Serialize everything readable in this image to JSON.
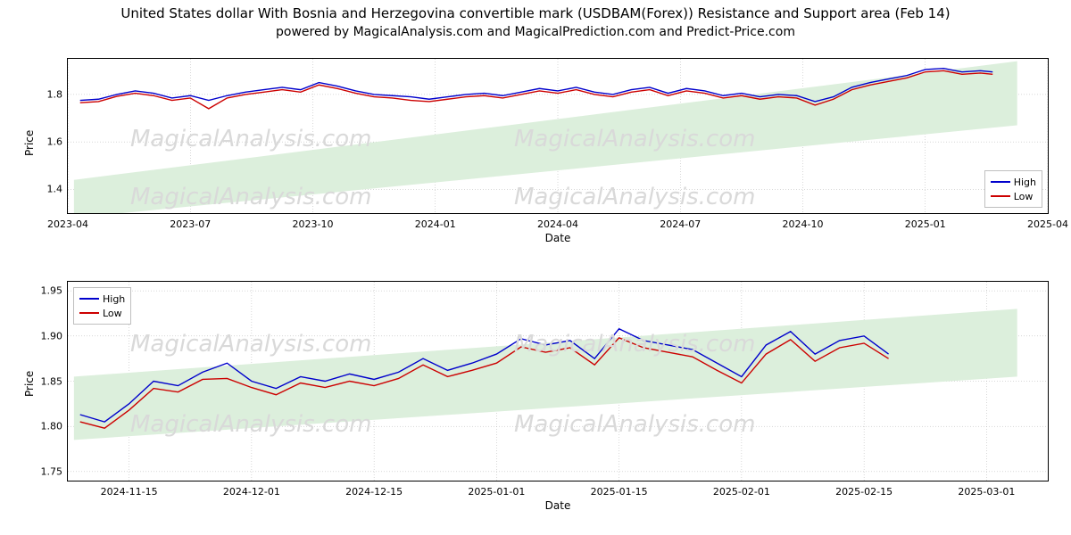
{
  "title_line1": "United States dollar With Bosnia and Herzegovina convertible mark (USDBAM(Forex)) Resistance and Support area (Feb 14)",
  "title_line2": "powered by MagicalAnalysis.com and MagicalPrediction.com and Predict-Price.com",
  "watermark": "MagicalAnalysis.com",
  "panel1": {
    "ylabel": "Price",
    "xlabel": "Date",
    "ylim": [
      1.3,
      1.95
    ],
    "yticks": [
      1.4,
      1.6,
      1.8
    ],
    "xlim": [
      0,
      8
    ],
    "xticks_pos": [
      0,
      1,
      2,
      3,
      4,
      5,
      6,
      7,
      8
    ],
    "xticks_label": [
      "2023-04",
      "2023-07",
      "2023-10",
      "2024-01",
      "2024-04",
      "2024-07",
      "2024-10",
      "2025-01",
      "2025-04"
    ],
    "support_band": {
      "x": [
        0.05,
        7.75
      ],
      "y_low": [
        1.28,
        1.67
      ],
      "y_high": [
        1.44,
        1.94
      ],
      "color": "#dcefdc"
    },
    "series": {
      "high": {
        "color": "#0000cc",
        "x": [
          0.1,
          0.25,
          0.4,
          0.55,
          0.7,
          0.85,
          1.0,
          1.15,
          1.3,
          1.45,
          1.6,
          1.75,
          1.9,
          2.05,
          2.2,
          2.35,
          2.5,
          2.65,
          2.8,
          2.95,
          3.1,
          3.25,
          3.4,
          3.55,
          3.7,
          3.85,
          4.0,
          4.15,
          4.3,
          4.45,
          4.6,
          4.75,
          4.9,
          5.05,
          5.2,
          5.35,
          5.5,
          5.65,
          5.8,
          5.95,
          6.1,
          6.25,
          6.4,
          6.55,
          6.7,
          6.85,
          7.0,
          7.15,
          7.3,
          7.45,
          7.55
        ],
        "y": [
          1.775,
          1.78,
          1.8,
          1.815,
          1.805,
          1.785,
          1.795,
          1.775,
          1.795,
          1.81,
          1.82,
          1.83,
          1.82,
          1.85,
          1.835,
          1.815,
          1.8,
          1.795,
          1.79,
          1.78,
          1.79,
          1.8,
          1.805,
          1.795,
          1.81,
          1.825,
          1.815,
          1.83,
          1.81,
          1.8,
          1.82,
          1.83,
          1.805,
          1.825,
          1.815,
          1.795,
          1.805,
          1.79,
          1.8,
          1.795,
          1.77,
          1.79,
          1.83,
          1.85,
          1.865,
          1.88,
          1.905,
          1.91,
          1.895,
          1.9,
          1.895
        ]
      },
      "low": {
        "color": "#cc0000",
        "x": [
          0.1,
          0.25,
          0.4,
          0.55,
          0.7,
          0.85,
          1.0,
          1.15,
          1.3,
          1.45,
          1.6,
          1.75,
          1.9,
          2.05,
          2.2,
          2.35,
          2.5,
          2.65,
          2.8,
          2.95,
          3.1,
          3.25,
          3.4,
          3.55,
          3.7,
          3.85,
          4.0,
          4.15,
          4.3,
          4.45,
          4.6,
          4.75,
          4.9,
          5.05,
          5.2,
          5.35,
          5.5,
          5.65,
          5.8,
          5.95,
          6.1,
          6.25,
          6.4,
          6.55,
          6.7,
          6.85,
          7.0,
          7.15,
          7.3,
          7.45,
          7.55
        ],
        "y": [
          1.765,
          1.77,
          1.792,
          1.805,
          1.795,
          1.775,
          1.785,
          1.74,
          1.785,
          1.8,
          1.81,
          1.82,
          1.81,
          1.84,
          1.825,
          1.805,
          1.79,
          1.785,
          1.775,
          1.77,
          1.78,
          1.79,
          1.795,
          1.785,
          1.8,
          1.815,
          1.805,
          1.82,
          1.8,
          1.79,
          1.81,
          1.82,
          1.795,
          1.815,
          1.805,
          1.785,
          1.795,
          1.78,
          1.79,
          1.785,
          1.755,
          1.78,
          1.82,
          1.84,
          1.855,
          1.87,
          1.895,
          1.9,
          1.885,
          1.89,
          1.885
        ]
      }
    },
    "legend": {
      "pos": "bottom-right",
      "items": [
        {
          "label": "High",
          "color": "#0000cc"
        },
        {
          "label": "Low",
          "color": "#cc0000"
        }
      ]
    }
  },
  "panel2": {
    "ylabel": "Price",
    "xlabel": "Date",
    "ylim": [
      1.74,
      1.96
    ],
    "yticks": [
      1.75,
      1.8,
      1.85,
      1.9,
      1.95
    ],
    "xlim": [
      0,
      8
    ],
    "xticks_pos": [
      0.5,
      1.5,
      2.5,
      3.5,
      4.5,
      5.5,
      6.5,
      7.5
    ],
    "xticks_label": [
      "2024-11-15",
      "2024-12-01",
      "2024-12-15",
      "2025-01-01",
      "2025-01-15",
      "2025-02-01",
      "2025-02-15",
      "2025-03-01"
    ],
    "support_band": {
      "x": [
        0.05,
        7.75
      ],
      "y_low": [
        1.785,
        1.855
      ],
      "y_high": [
        1.855,
        1.93
      ],
      "color": "#dcefdc"
    },
    "series": {
      "high": {
        "color": "#0000cc",
        "x": [
          0.1,
          0.3,
          0.5,
          0.7,
          0.9,
          1.1,
          1.3,
          1.5,
          1.7,
          1.9,
          2.1,
          2.3,
          2.5,
          2.7,
          2.9,
          3.1,
          3.3,
          3.5,
          3.7,
          3.9,
          4.1,
          4.3,
          4.5,
          4.7,
          4.9,
          5.1,
          5.3,
          5.5,
          5.7,
          5.9,
          6.1,
          6.3,
          6.5,
          6.7
        ],
        "y": [
          1.813,
          1.805,
          1.825,
          1.85,
          1.845,
          1.86,
          1.87,
          1.85,
          1.842,
          1.855,
          1.85,
          1.858,
          1.852,
          1.86,
          1.875,
          1.862,
          1.87,
          1.88,
          1.897,
          1.89,
          1.895,
          1.875,
          1.908,
          1.895,
          1.89,
          1.885,
          1.87,
          1.855,
          1.89,
          1.905,
          1.88,
          1.895,
          1.9,
          1.88
        ]
      },
      "low": {
        "color": "#cc0000",
        "x": [
          0.1,
          0.3,
          0.5,
          0.7,
          0.9,
          1.1,
          1.3,
          1.5,
          1.7,
          1.9,
          2.1,
          2.3,
          2.5,
          2.7,
          2.9,
          3.1,
          3.3,
          3.5,
          3.7,
          3.9,
          4.1,
          4.3,
          4.5,
          4.7,
          4.9,
          5.1,
          5.3,
          5.5,
          5.7,
          5.9,
          6.1,
          6.3,
          6.5,
          6.7
        ],
        "y": [
          1.805,
          1.798,
          1.818,
          1.842,
          1.838,
          1.852,
          1.853,
          1.843,
          1.835,
          1.848,
          1.843,
          1.85,
          1.845,
          1.853,
          1.868,
          1.855,
          1.862,
          1.87,
          1.888,
          1.882,
          1.887,
          1.868,
          1.898,
          1.887,
          1.882,
          1.877,
          1.862,
          1.848,
          1.88,
          1.896,
          1.872,
          1.887,
          1.892,
          1.875
        ]
      }
    },
    "legend": {
      "pos": "top-left",
      "items": [
        {
          "label": "High",
          "color": "#0000cc"
        },
        {
          "label": "Low",
          "color": "#cc0000"
        }
      ]
    }
  }
}
